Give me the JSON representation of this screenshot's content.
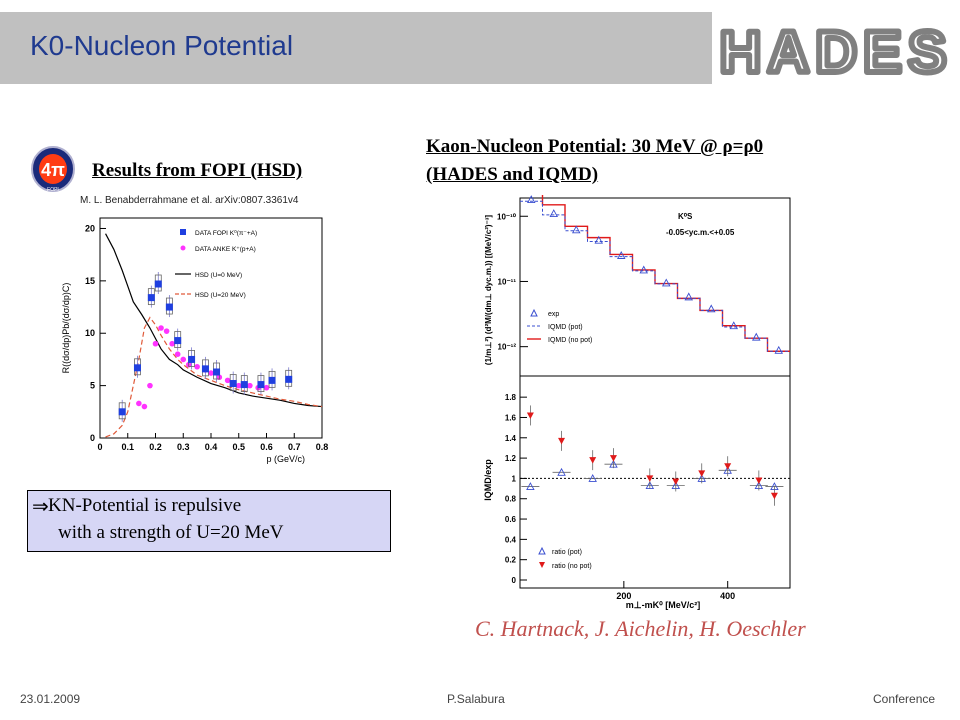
{
  "header": {
    "title": "K0-Nucleon Potential",
    "logo_text": "HADES"
  },
  "fopi": {
    "heading": "Results from FOPI (HSD)",
    "citation": "M. L. Benabderrahmane et al. arXiv:0807.3361v4",
    "logo_text": "4π",
    "logo_caption": "FOPI"
  },
  "kn": {
    "heading_line1": "Kaon-Nucleon Potential: 30 MeV @ ρ=ρ0",
    "heading_line2": "(HADES and IQMD)"
  },
  "conclusion": {
    "arrow": "⇒",
    "line1": "KN-Potential is repulsive",
    "line2": "with a strength of U=20 MeV"
  },
  "authors": "C. Hartnack, J. Aichelin, H. Oeschler",
  "footer": {
    "date": "23.01.2009",
    "author": "P.Salabura",
    "event": "Conference"
  },
  "colors": {
    "title": "#1f3a8f",
    "header_bg": "#c0c0c0",
    "box_bg": "#d6d6f5",
    "authors": "#c0504d",
    "fopi_data": "#1f3fe0",
    "anke_data": "#ff33ff",
    "hsd0": "#000000",
    "hsd20": "#e05a3a",
    "exp": "#3a4fd0",
    "iqmd_pot": "#3a4fd0",
    "iqmd_nopot": "#e01a1a"
  },
  "chart_data": [
    {
      "type": "scatter",
      "xlabel": "p (GeV/c)",
      "ylabel": "R((dσ/dp)Pb/(dσ/dp)C)",
      "xlim": [
        0,
        0.8
      ],
      "ylim": [
        0,
        21
      ],
      "x_ticks": [
        "0",
        "0.1",
        "0.2",
        "0.3",
        "0.4",
        "0.5",
        "0.6",
        "0.7",
        "0.8"
      ],
      "y_ticks": [
        "0",
        "5",
        "10",
        "15",
        "20"
      ],
      "legend": "top-right",
      "series": [
        {
          "name": "DATA FOPI K⁰(π⁻+A)",
          "marker": "square",
          "x": [
            0.08,
            0.135,
            0.185,
            0.21,
            0.25,
            0.28,
            0.33,
            0.38,
            0.42,
            0.48,
            0.52,
            0.58,
            0.62,
            0.68
          ],
          "y": [
            2.5,
            6.7,
            13.4,
            14.7,
            12.5,
            9.3,
            7.5,
            6.6,
            6.3,
            5.2,
            5.1,
            5.1,
            5.5,
            5.6
          ]
        },
        {
          "name": "DATA ANKE K⁺(p+A)",
          "marker": "circle",
          "x": [
            0.14,
            0.16,
            0.18,
            0.2,
            0.22,
            0.24,
            0.26,
            0.28,
            0.3,
            0.32,
            0.35,
            0.38,
            0.4,
            0.43,
            0.46,
            0.5,
            0.54,
            0.57,
            0.6
          ],
          "y": [
            3.3,
            3.0,
            5.0,
            9.0,
            10.5,
            10.2,
            9.0,
            8.0,
            7.5,
            7.0,
            6.8,
            6.5,
            6.2,
            5.8,
            5.5,
            5.0,
            5.0,
            4.8,
            4.8
          ]
        },
        {
          "name": "HSD (U=0 MeV)",
          "style": "solid",
          "x": [
            0.02,
            0.05,
            0.08,
            0.1,
            0.12,
            0.15,
            0.18,
            0.2,
            0.22,
            0.25,
            0.28,
            0.3,
            0.35,
            0.4,
            0.45,
            0.5,
            0.55,
            0.6,
            0.65,
            0.7,
            0.75,
            0.8
          ],
          "y": [
            19.5,
            18.0,
            16.0,
            14.5,
            13.0,
            11.8,
            10.5,
            9.5,
            8.5,
            7.5,
            7.0,
            6.5,
            5.8,
            5.2,
            4.8,
            4.3,
            4.0,
            3.8,
            3.6,
            3.3,
            3.1,
            3.0
          ]
        },
        {
          "name": "HSD (U=20 MeV)",
          "style": "dashed",
          "x": [
            0.02,
            0.05,
            0.08,
            0.1,
            0.12,
            0.14,
            0.16,
            0.18,
            0.2,
            0.22,
            0.25,
            0.28,
            0.3,
            0.35,
            0.4,
            0.45,
            0.5,
            0.55,
            0.6,
            0.65,
            0.7,
            0.75,
            0.8
          ],
          "y": [
            0.1,
            0.4,
            1.2,
            2.5,
            5.0,
            7.5,
            10.5,
            11.5,
            10.8,
            9.8,
            8.5,
            7.5,
            7.0,
            6.0,
            5.5,
            5.0,
            4.6,
            4.3,
            4.0,
            3.7,
            3.5,
            3.2,
            3.0
          ]
        }
      ]
    },
    {
      "type": "line",
      "scale": "log",
      "xlabel": "",
      "ylabel": "(1/m⊥²) (d²M/(dm⊥ dyc.m.)) [(MeV/c²)⁻³]",
      "y_ticks": [
        "10⁻¹⁰",
        "10⁻¹¹",
        "10⁻¹²"
      ],
      "annotation_particle": "K⁰S",
      "annotation_cut": "-0.05<yc.m.<+0.05",
      "legend": "bottom-left",
      "bins_x": [
        0,
        40,
        80,
        120,
        160,
        200,
        240,
        280,
        320,
        360,
        400,
        440,
        480
      ],
      "series": [
        {
          "name": "exp",
          "marker": "open-triangle",
          "x": [
            20,
            60,
            100,
            140,
            180,
            220,
            260,
            300,
            340,
            380,
            420,
            460
          ],
          "y": [
            1.8e-10,
            1.1e-10,
            6.2e-11,
            4.3e-11,
            2.5e-11,
            1.5e-11,
            9.5e-12,
            5.8e-12,
            3.8e-12,
            2.1e-12,
            1.4e-12,
            8.8e-13
          ]
        },
        {
          "name": "IQMD (pot)",
          "style": "dashed",
          "x": [
            20,
            60,
            100,
            140,
            180,
            220,
            260,
            300,
            340,
            380,
            420,
            460
          ],
          "y": [
            1.7e-10,
            1.05e-10,
            6e-11,
            4.1e-11,
            2.4e-11,
            1.45e-11,
            9.2e-12,
            5.5e-12,
            3.6e-12,
            2e-12,
            1.35e-12,
            8.5e-13
          ]
        },
        {
          "name": "IQMD (no pot)",
          "style": "solid",
          "x": [
            20,
            60,
            100,
            140,
            180,
            220,
            260,
            300,
            340,
            380,
            420,
            460
          ],
          "y": [
            2.7e-10,
            1.5e-10,
            7e-11,
            4.7e-11,
            2.6e-11,
            1.5e-11,
            9.3e-12,
            5.5e-12,
            3.6e-12,
            2.1e-12,
            1.35e-12,
            8.5e-13
          ]
        }
      ]
    },
    {
      "type": "scatter",
      "xlabel": "m⊥-mK⁰ [MeV/c²]",
      "ylabel": "IQMD/exp",
      "xlim": [
        0,
        520
      ],
      "ylim": [
        0,
        1.9
      ],
      "x_ticks": [
        "200",
        "400"
      ],
      "y_ticks": [
        "0",
        "0.2",
        "0.4",
        "0.6",
        "0.8",
        "1",
        "1.2",
        "1.4",
        "1.6",
        "1.8"
      ],
      "legend": "bottom-left",
      "series": [
        {
          "name": "ratio (pot)",
          "marker": "open-triangle",
          "x": [
            20,
            80,
            140,
            180,
            250,
            300,
            350,
            400,
            460,
            490
          ],
          "y": [
            0.92,
            1.06,
            1.0,
            1.14,
            0.93,
            0.93,
            1.0,
            1.08,
            0.93,
            0.92
          ]
        },
        {
          "name": "ratio (no pot)",
          "marker": "filled-triangle",
          "x": [
            20,
            80,
            140,
            180,
            250,
            300,
            350,
            400,
            460,
            490
          ],
          "y": [
            1.62,
            1.37,
            1.18,
            1.2,
            1.0,
            0.97,
            1.05,
            1.12,
            0.98,
            0.83
          ]
        }
      ]
    }
  ]
}
